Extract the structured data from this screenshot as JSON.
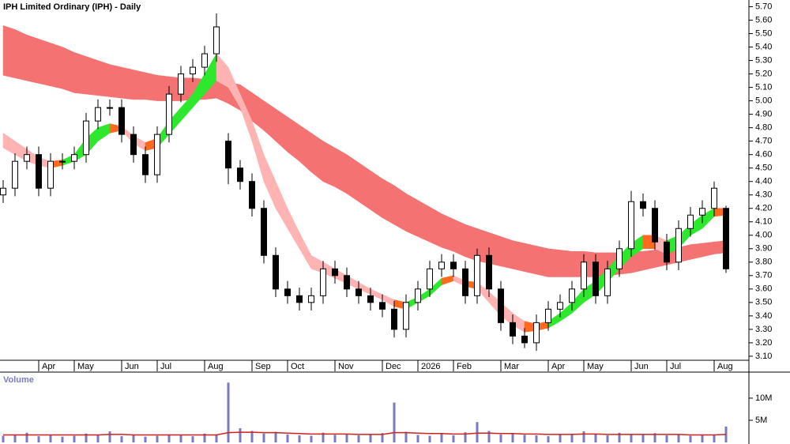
{
  "chart_data": [
    {
      "type": "candlestick",
      "title": "IPH Limited Ordinary (IPH) - Daily",
      "categories": [
        null,
        null,
        null,
        "Apr",
        null,
        null,
        "May",
        null,
        null,
        null,
        "Jun",
        null,
        null,
        "Jul",
        null,
        null,
        null,
        "Aug",
        null,
        null,
        null,
        "Sep",
        null,
        null,
        "Oct",
        null,
        null,
        null,
        "Nov",
        null,
        null,
        null,
        "Dec",
        null,
        null,
        "2026",
        null,
        null,
        "Feb",
        null,
        null,
        null,
        "Mar",
        null,
        null,
        null,
        "Apr",
        null,
        null,
        "May",
        null,
        null,
        null,
        "Jun",
        null,
        null,
        "Jul",
        null,
        null,
        null,
        "Aug",
        null
      ],
      "open": [
        4.3,
        4.35,
        4.55,
        4.6,
        4.35,
        4.55,
        4.55,
        4.6,
        4.85,
        4.95,
        4.95,
        4.75,
        4.6,
        4.45,
        4.75,
        5.05,
        5.2,
        5.25,
        5.35,
        4.7,
        4.5,
        4.4,
        4.2,
        3.85,
        3.6,
        3.55,
        3.5,
        3.55,
        3.75,
        3.7,
        3.6,
        3.55,
        3.5,
        3.45,
        3.3,
        3.5,
        3.6,
        3.75,
        3.8,
        3.75,
        3.55,
        3.85,
        3.6,
        3.35,
        3.25,
        3.2,
        3.35,
        3.45,
        3.5,
        3.6,
        3.8,
        3.55,
        3.75,
        3.9,
        4.25,
        4.2,
        3.95,
        3.8,
        4.05,
        4.15,
        4.2,
        4.2
      ],
      "high": [
        4.41,
        4.61,
        4.66,
        4.66,
        4.61,
        4.61,
        4.66,
        4.91,
        5.01,
        5.01,
        5.01,
        4.81,
        4.66,
        4.81,
        5.11,
        5.26,
        5.31,
        5.41,
        5.65,
        4.76,
        4.56,
        4.46,
        4.26,
        3.91,
        3.66,
        3.61,
        3.61,
        3.81,
        3.81,
        3.76,
        3.66,
        3.61,
        3.56,
        3.51,
        3.56,
        3.66,
        3.81,
        3.86,
        3.86,
        3.81,
        3.9,
        3.91,
        3.66,
        3.41,
        3.31,
        3.41,
        3.51,
        3.56,
        3.66,
        3.86,
        3.86,
        3.81,
        3.96,
        4.33,
        4.31,
        4.26,
        4.01,
        4.11,
        4.21,
        4.26,
        4.4,
        4.22
      ],
      "low": [
        4.24,
        4.29,
        4.49,
        4.29,
        4.29,
        4.49,
        4.49,
        4.54,
        4.79,
        4.89,
        4.69,
        4.54,
        4.39,
        4.39,
        4.69,
        4.99,
        5.14,
        5.19,
        5.29,
        4.38,
        4.34,
        4.14,
        3.79,
        3.54,
        3.49,
        3.44,
        3.44,
        3.49,
        3.64,
        3.54,
        3.49,
        3.44,
        3.39,
        3.24,
        3.24,
        3.44,
        3.54,
        3.69,
        3.69,
        3.49,
        3.49,
        3.54,
        3.29,
        3.19,
        3.16,
        3.14,
        3.29,
        3.39,
        3.44,
        3.54,
        3.49,
        3.49,
        3.69,
        3.84,
        4.14,
        3.89,
        3.74,
        3.74,
        3.99,
        4.09,
        4.14,
        3.72
      ],
      "close": [
        4.35,
        4.55,
        4.6,
        4.35,
        4.55,
        4.55,
        4.6,
        4.85,
        4.95,
        4.95,
        4.75,
        4.6,
        4.45,
        4.75,
        5.05,
        5.2,
        5.25,
        5.35,
        5.55,
        4.5,
        4.4,
        4.2,
        3.85,
        3.6,
        3.55,
        3.5,
        3.55,
        3.75,
        3.7,
        3.6,
        3.55,
        3.5,
        3.45,
        3.3,
        3.5,
        3.6,
        3.75,
        3.8,
        3.75,
        3.55,
        3.85,
        3.6,
        3.35,
        3.25,
        3.2,
        3.35,
        3.45,
        3.5,
        3.6,
        3.8,
        3.55,
        3.75,
        3.9,
        4.25,
        4.2,
        3.95,
        3.8,
        4.05,
        4.15,
        4.2,
        4.35,
        3.75
      ],
      "long_band": {
        "color": "#f47272",
        "upper": [
          5.56,
          5.53,
          5.49,
          5.46,
          5.43,
          5.4,
          5.36,
          5.33,
          5.3,
          5.27,
          5.25,
          5.23,
          5.21,
          5.19,
          5.18,
          5.17,
          5.17,
          5.16,
          5.16,
          5.14,
          5.12,
          5.06,
          5.0,
          4.94,
          4.88,
          4.82,
          4.76,
          4.7,
          4.65,
          4.6,
          4.54,
          4.48,
          4.42,
          4.37,
          4.31,
          4.26,
          4.21,
          4.16,
          4.12,
          4.08,
          4.05,
          4.02,
          3.99,
          3.96,
          3.94,
          3.92,
          3.9,
          3.89,
          3.88,
          3.88,
          3.87,
          3.87,
          3.87,
          3.88,
          3.88,
          3.89,
          3.9,
          3.91,
          3.93,
          3.94,
          3.95,
          3.96
        ],
        "lower": [
          5.19,
          5.17,
          5.15,
          5.13,
          5.11,
          5.09,
          5.06,
          5.05,
          5.04,
          5.03,
          5.02,
          5.01,
          5.01,
          5.0,
          5.0,
          5.0,
          5.01,
          5.01,
          5.02,
          4.98,
          4.93,
          4.85,
          4.78,
          4.7,
          4.62,
          4.55,
          4.47,
          4.4,
          4.36,
          4.31,
          4.25,
          4.19,
          4.13,
          4.08,
          4.03,
          3.99,
          3.95,
          3.91,
          3.88,
          3.84,
          3.81,
          3.79,
          3.77,
          3.75,
          3.73,
          3.71,
          3.69,
          3.69,
          3.69,
          3.69,
          3.69,
          3.7,
          3.71,
          3.72,
          3.74,
          3.76,
          3.78,
          3.8,
          3.82,
          3.84,
          3.86,
          3.87
        ]
      },
      "short_band": {
        "colors": {
          "rising": "#2ee82e",
          "falling": "#ffb3b3",
          "flat": "#ff6a1f"
        },
        "upper": [
          4.76,
          4.7,
          4.64,
          4.58,
          4.55,
          4.56,
          4.6,
          4.72,
          4.8,
          4.83,
          4.81,
          4.74,
          4.69,
          4.72,
          4.85,
          4.95,
          5.05,
          5.2,
          5.35,
          5.25,
          5.05,
          4.85,
          4.6,
          4.4,
          4.2,
          4.02,
          3.85,
          3.8,
          3.75,
          3.7,
          3.65,
          3.6,
          3.56,
          3.52,
          3.5,
          3.54,
          3.6,
          3.68,
          3.7,
          3.66,
          3.65,
          3.58,
          3.5,
          3.42,
          3.36,
          3.34,
          3.36,
          3.42,
          3.5,
          3.6,
          3.66,
          3.75,
          3.85,
          3.94,
          4.0,
          4.0,
          3.96,
          4.0,
          4.08,
          4.15,
          4.2,
          4.2
        ],
        "lower": [
          4.65,
          4.6,
          4.55,
          4.52,
          4.5,
          4.52,
          4.55,
          4.6,
          4.7,
          4.76,
          4.78,
          4.68,
          4.63,
          4.65,
          4.75,
          4.85,
          4.95,
          5.05,
          5.15,
          5.1,
          4.95,
          4.7,
          4.4,
          4.2,
          4.05,
          3.9,
          3.75,
          3.72,
          3.68,
          3.64,
          3.6,
          3.56,
          3.52,
          3.47,
          3.45,
          3.5,
          3.55,
          3.63,
          3.66,
          3.62,
          3.6,
          3.5,
          3.4,
          3.33,
          3.28,
          3.29,
          3.31,
          3.36,
          3.42,
          3.5,
          3.56,
          3.65,
          3.75,
          3.84,
          3.9,
          3.9,
          3.86,
          3.9,
          4.0,
          4.05,
          4.14,
          4.15
        ]
      },
      "ylim": [
        3.07,
        5.75
      ],
      "yticks": [
        {
          "value": 5.7,
          "label": "5.70"
        },
        {
          "value": 5.6,
          "label": "5.60"
        },
        {
          "value": 5.5,
          "label": "5.50"
        },
        {
          "value": 5.4,
          "label": "5.40"
        },
        {
          "value": 5.3,
          "label": "5.30"
        },
        {
          "value": 5.2,
          "label": "5.20"
        },
        {
          "value": 5.1,
          "label": "5.10"
        },
        {
          "value": 5.0,
          "label": "5.00"
        },
        {
          "value": 4.9,
          "label": "4.90"
        },
        {
          "value": 4.8,
          "label": "4.80"
        },
        {
          "value": 4.7,
          "label": "4.70"
        },
        {
          "value": 4.6,
          "label": "4.60"
        },
        {
          "value": 4.5,
          "label": "4.50"
        },
        {
          "value": 4.4,
          "label": "4.40"
        },
        {
          "value": 4.3,
          "label": "4.30"
        },
        {
          "value": 4.2,
          "label": "4.20"
        },
        {
          "value": 4.1,
          "label": "4.10"
        },
        {
          "value": 4.0,
          "label": "4.00"
        },
        {
          "value": 3.9,
          "label": "3.90"
        },
        {
          "value": 3.8,
          "label": "3.80"
        },
        {
          "value": 3.7,
          "label": "3.70"
        },
        {
          "value": 3.6,
          "label": "3.60"
        },
        {
          "value": 3.5,
          "label": "3.50"
        },
        {
          "value": 3.4,
          "label": "3.40"
        },
        {
          "value": 3.3,
          "label": "3.30"
        },
        {
          "value": 3.2,
          "label": "3.20"
        },
        {
          "value": 3.1,
          "label": "3.10"
        }
      ]
    },
    {
      "type": "bar",
      "title": "Volume",
      "color": "#7a7ac4",
      "average_color": "#d02020",
      "values": [
        1500000,
        1800000,
        2200000,
        1400000,
        1600000,
        1300000,
        1500000,
        2000000,
        1700000,
        2500000,
        1400000,
        1600000,
        1300000,
        1500000,
        1800000,
        1600000,
        1400000,
        2000000,
        1800000,
        13500000,
        3200000,
        2600000,
        2000000,
        2400000,
        1800000,
        1600000,
        1500000,
        2200000,
        1700000,
        1900000,
        1600000,
        1800000,
        2100000,
        9000000,
        2400000,
        1700000,
        1500000,
        1900000,
        1600000,
        2300000,
        4600000,
        2600000,
        1800000,
        2000000,
        1700000,
        1600000,
        1400000,
        1700000,
        1900000,
        2500000,
        1800000,
        1600000,
        2200000,
        1900000,
        1700000,
        2100000,
        1600000,
        1800000,
        1500000,
        1700000,
        1600000,
        3600000
      ],
      "average": [
        1700000,
        1700000,
        1700000,
        1700000,
        1700000,
        1700000,
        1700000,
        1700000,
        1700000,
        1800000,
        1800000,
        1700000,
        1700000,
        1700000,
        1700000,
        1700000,
        1700000,
        1700000,
        1700000,
        2200000,
        2300000,
        2300000,
        2200000,
        2200000,
        2100000,
        2000000,
        1900000,
        1900000,
        1900000,
        1900000,
        1800000,
        1800000,
        1800000,
        2200000,
        2200000,
        2100000,
        2000000,
        2000000,
        1900000,
        1900000,
        2100000,
        2100000,
        2000000,
        2000000,
        1900000,
        1900000,
        1800000,
        1800000,
        1800000,
        1900000,
        1900000,
        1800000,
        1800000,
        1800000,
        1800000,
        1800000,
        1800000,
        1800000,
        1700000,
        1700000,
        1700000,
        1800000
      ],
      "ylim": [
        0,
        15700000
      ],
      "yticks": [
        {
          "value": 10000000,
          "label": "10M"
        },
        {
          "value": 5000000,
          "label": "5M"
        }
      ]
    }
  ]
}
